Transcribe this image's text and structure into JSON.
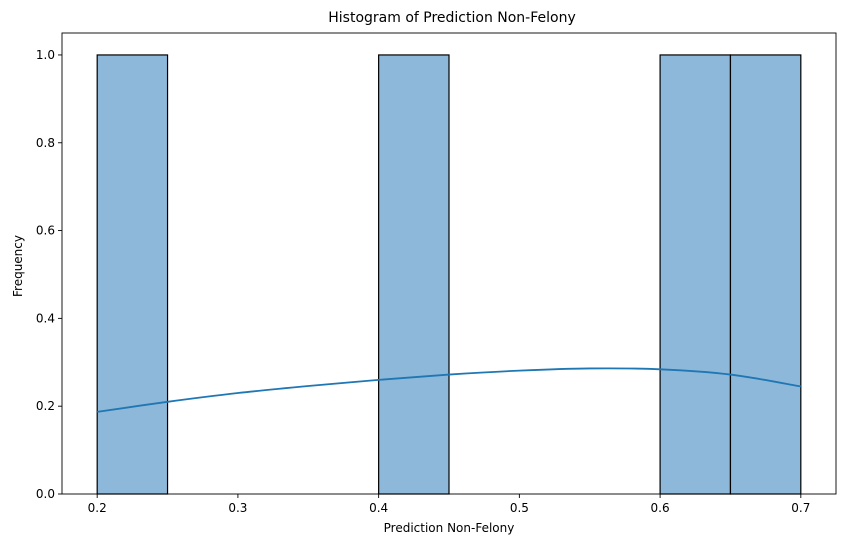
{
  "chart_data": {
    "type": "bar",
    "title": "Histogram of Prediction Non-Felony",
    "xlabel": "Prediction Non-Felony",
    "ylabel": "Frequency",
    "xlim": [
      0.175,
      0.725
    ],
    "ylim": [
      0.0,
      1.05
    ],
    "x_ticks": [
      "0.2",
      "0.3",
      "0.4",
      "0.5",
      "0.6",
      "0.7"
    ],
    "y_ticks": [
      "0.0",
      "0.2",
      "0.4",
      "0.6",
      "0.8",
      "1.0"
    ],
    "bins": [
      {
        "start": 0.2,
        "end": 0.25,
        "count": 1
      },
      {
        "start": 0.25,
        "end": 0.3,
        "count": 0
      },
      {
        "start": 0.3,
        "end": 0.35,
        "count": 0
      },
      {
        "start": 0.35,
        "end": 0.4,
        "count": 0
      },
      {
        "start": 0.4,
        "end": 0.45,
        "count": 1
      },
      {
        "start": 0.45,
        "end": 0.5,
        "count": 0
      },
      {
        "start": 0.5,
        "end": 0.55,
        "count": 0
      },
      {
        "start": 0.55,
        "end": 0.6,
        "count": 0
      },
      {
        "start": 0.6,
        "end": 0.65,
        "count": 1
      },
      {
        "start": 0.65,
        "end": 0.7,
        "count": 1
      }
    ],
    "kde": {
      "x": [
        0.2,
        0.25,
        0.3,
        0.35,
        0.4,
        0.45,
        0.5,
        0.55,
        0.6,
        0.65,
        0.7
      ],
      "y": [
        0.187,
        0.21,
        0.23,
        0.246,
        0.26,
        0.272,
        0.281,
        0.286,
        0.284,
        0.272,
        0.245
      ]
    },
    "bar_color": "#8DB8D9",
    "bar_edge_color": "#000000",
    "kde_color": "#1F77B4",
    "grid": false
  }
}
